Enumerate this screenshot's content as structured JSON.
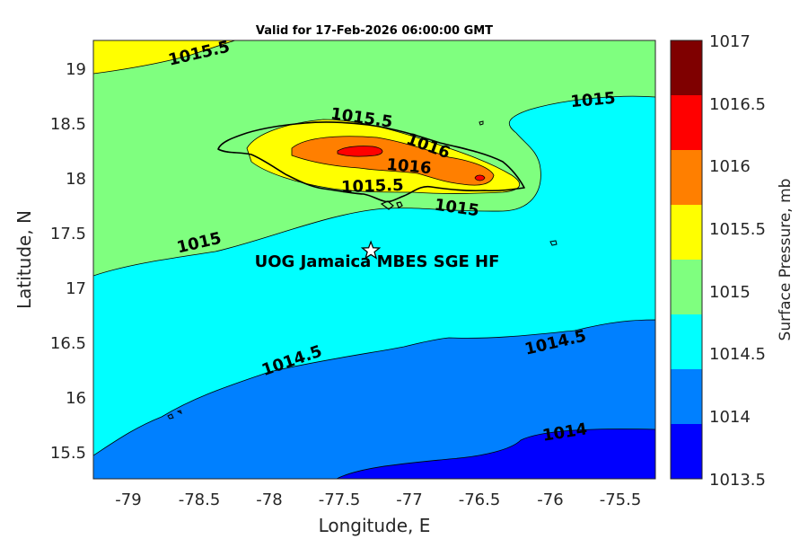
{
  "title": "Valid for 17-Feb-2026 06:00:00 GMT",
  "axes": {
    "xlabel": "Longitude, E",
    "ylabel": "Latitude, N",
    "xticks": [
      "-79",
      "-78.5",
      "-78",
      "-77.5",
      "-77",
      "-76.5",
      "-76",
      "-75.5"
    ],
    "yticks": [
      "19",
      "18.5",
      "18",
      "17.5",
      "17",
      "16.5",
      "16",
      "15.5"
    ]
  },
  "colorbar": {
    "label": "Surface Pressure, mb",
    "ticks": [
      "1017",
      "1016.5",
      "1016",
      "1015.5",
      "1015",
      "1014.5",
      "1014",
      "1013.5"
    ],
    "colors": [
      "#7f0000",
      "#ff0000",
      "#ff7f00",
      "#ffff00",
      "#7fff7f",
      "#00ffff",
      "#0080ff",
      "#0000ff"
    ]
  },
  "contour_labels": [
    "1015.5",
    "1015.5",
    "1016",
    "1016",
    "1015.5",
    "1015",
    "1015",
    "1015",
    "1014.5",
    "1014.5",
    "1014"
  ],
  "site": {
    "label": "UOG Jamaica MBES SGE HF",
    "marker": "star-icon"
  },
  "chart_data": {
    "type": "heatmap",
    "title": "Valid for 17-Feb-2026 06:00:00 GMT",
    "xlabel": "Longitude, E",
    "ylabel": "Latitude, N",
    "xlim": [
      -79.28,
      -75.27
    ],
    "ylim": [
      15.27,
      19.27
    ],
    "color_label": "Surface Pressure, mb",
    "color_range": [
      1013.5,
      1017
    ],
    "contour_levels": [
      1014,
      1014.5,
      1015,
      1015.5,
      1016,
      1016.5
    ],
    "marker": {
      "lon": -77.3,
      "lat": 17.35,
      "label": "UOG Jamaica MBES SGE HF"
    }
  }
}
